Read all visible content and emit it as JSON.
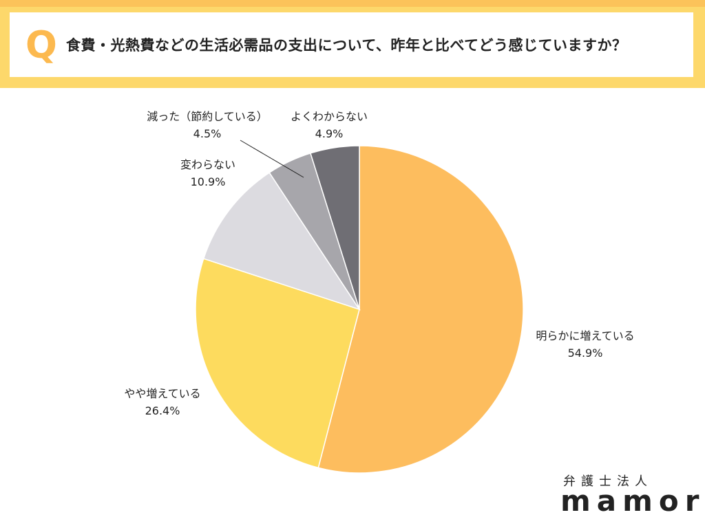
{
  "header": {
    "q_mark": "Q",
    "question": "食費・光熱費などの生活必需品の支出について、昨年と比べてどう感じていますか？"
  },
  "chart_data": {
    "type": "pie",
    "start_angle_deg": 0,
    "direction": "clockwise",
    "slices": [
      {
        "label": "明らかに増えている",
        "value": 54.9,
        "display": "54.9%",
        "color": "#fdbd5e"
      },
      {
        "label": "やや増えている",
        "value": 26.4,
        "display": "26.4%",
        "color": "#fddb5e"
      },
      {
        "label": "変わらない",
        "value": 10.9,
        "display": "10.9%",
        "color": "#dcdbe0"
      },
      {
        "label": "減った（節約している）",
        "value": 4.5,
        "display": "4.5%",
        "color": "#a7a6ab"
      },
      {
        "label": "よくわからない",
        "value": 4.9,
        "display": "4.9%",
        "color": "#6f6e74"
      }
    ]
  },
  "logo": {
    "top": "弁護士法人",
    "main": "mamori"
  }
}
